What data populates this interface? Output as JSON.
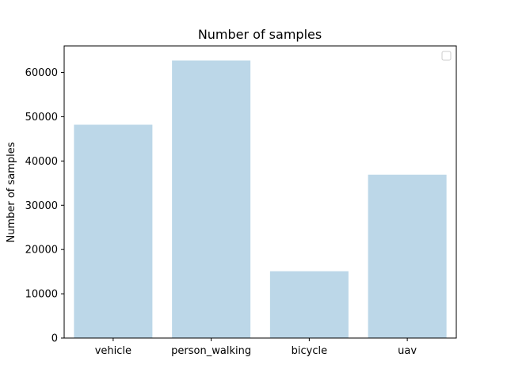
{
  "chart_data": {
    "type": "bar",
    "title": "Number of samples",
    "xlabel": "",
    "ylabel": "Number of samples",
    "categories": [
      "vehicle",
      "person_walking",
      "bicycle",
      "uav"
    ],
    "values": [
      48200,
      62700,
      15100,
      36900
    ],
    "ylim": [
      0,
      66000
    ],
    "yticks": [
      0,
      10000,
      20000,
      30000,
      40000,
      50000,
      60000
    ],
    "grid": false,
    "legend": "top-right (empty)",
    "bar_color": "#bcd7e8"
  }
}
